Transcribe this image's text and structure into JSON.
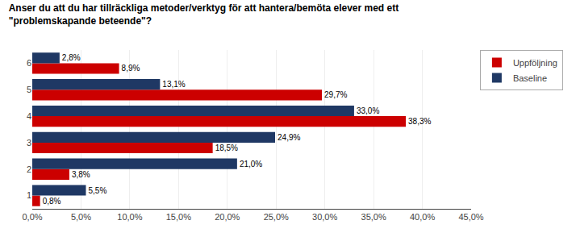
{
  "chart_data": {
    "type": "bar",
    "orientation": "horizontal",
    "title": "Anser du att du har tillräckliga metoder/verktyg för att hantera/bemöta elever med ett\n\"problemskapande beteende\"?",
    "categories": [
      "1",
      "2",
      "3",
      "4",
      "5",
      "6"
    ],
    "series": [
      {
        "name": "Uppföljning",
        "color": "#CC0000",
        "values": [
          0.8,
          3.8,
          18.5,
          38.3,
          29.7,
          8.9
        ],
        "value_labels": [
          "0,8%",
          "3,8%",
          "18,5%",
          "38,3%",
          "29,7%",
          "8,9%"
        ]
      },
      {
        "name": "Baseline",
        "color": "#1F3864",
        "values": [
          5.5,
          21.0,
          24.9,
          33.0,
          13.1,
          2.8
        ],
        "value_labels": [
          "5,5%",
          "21,0%",
          "24,9%",
          "33,0%",
          "13,1%",
          "2,8%"
        ]
      }
    ],
    "xlim": [
      0,
      45
    ],
    "xticks": [
      {
        "value": 0,
        "label": "0,0%"
      },
      {
        "value": 5,
        "label": "5,0%"
      },
      {
        "value": 10,
        "label": "10,0%"
      },
      {
        "value": 15,
        "label": "15,0%"
      },
      {
        "value": 20,
        "label": "20,0%"
      },
      {
        "value": 25,
        "label": "25,0%"
      },
      {
        "value": 30,
        "label": "30,0%"
      },
      {
        "value": 35,
        "label": "35,0%"
      },
      {
        "value": 40,
        "label": "40,0%"
      },
      {
        "value": 45,
        "label": "45,0%"
      }
    ],
    "grid": true,
    "legend": "upper right",
    "data_labels": true
  }
}
